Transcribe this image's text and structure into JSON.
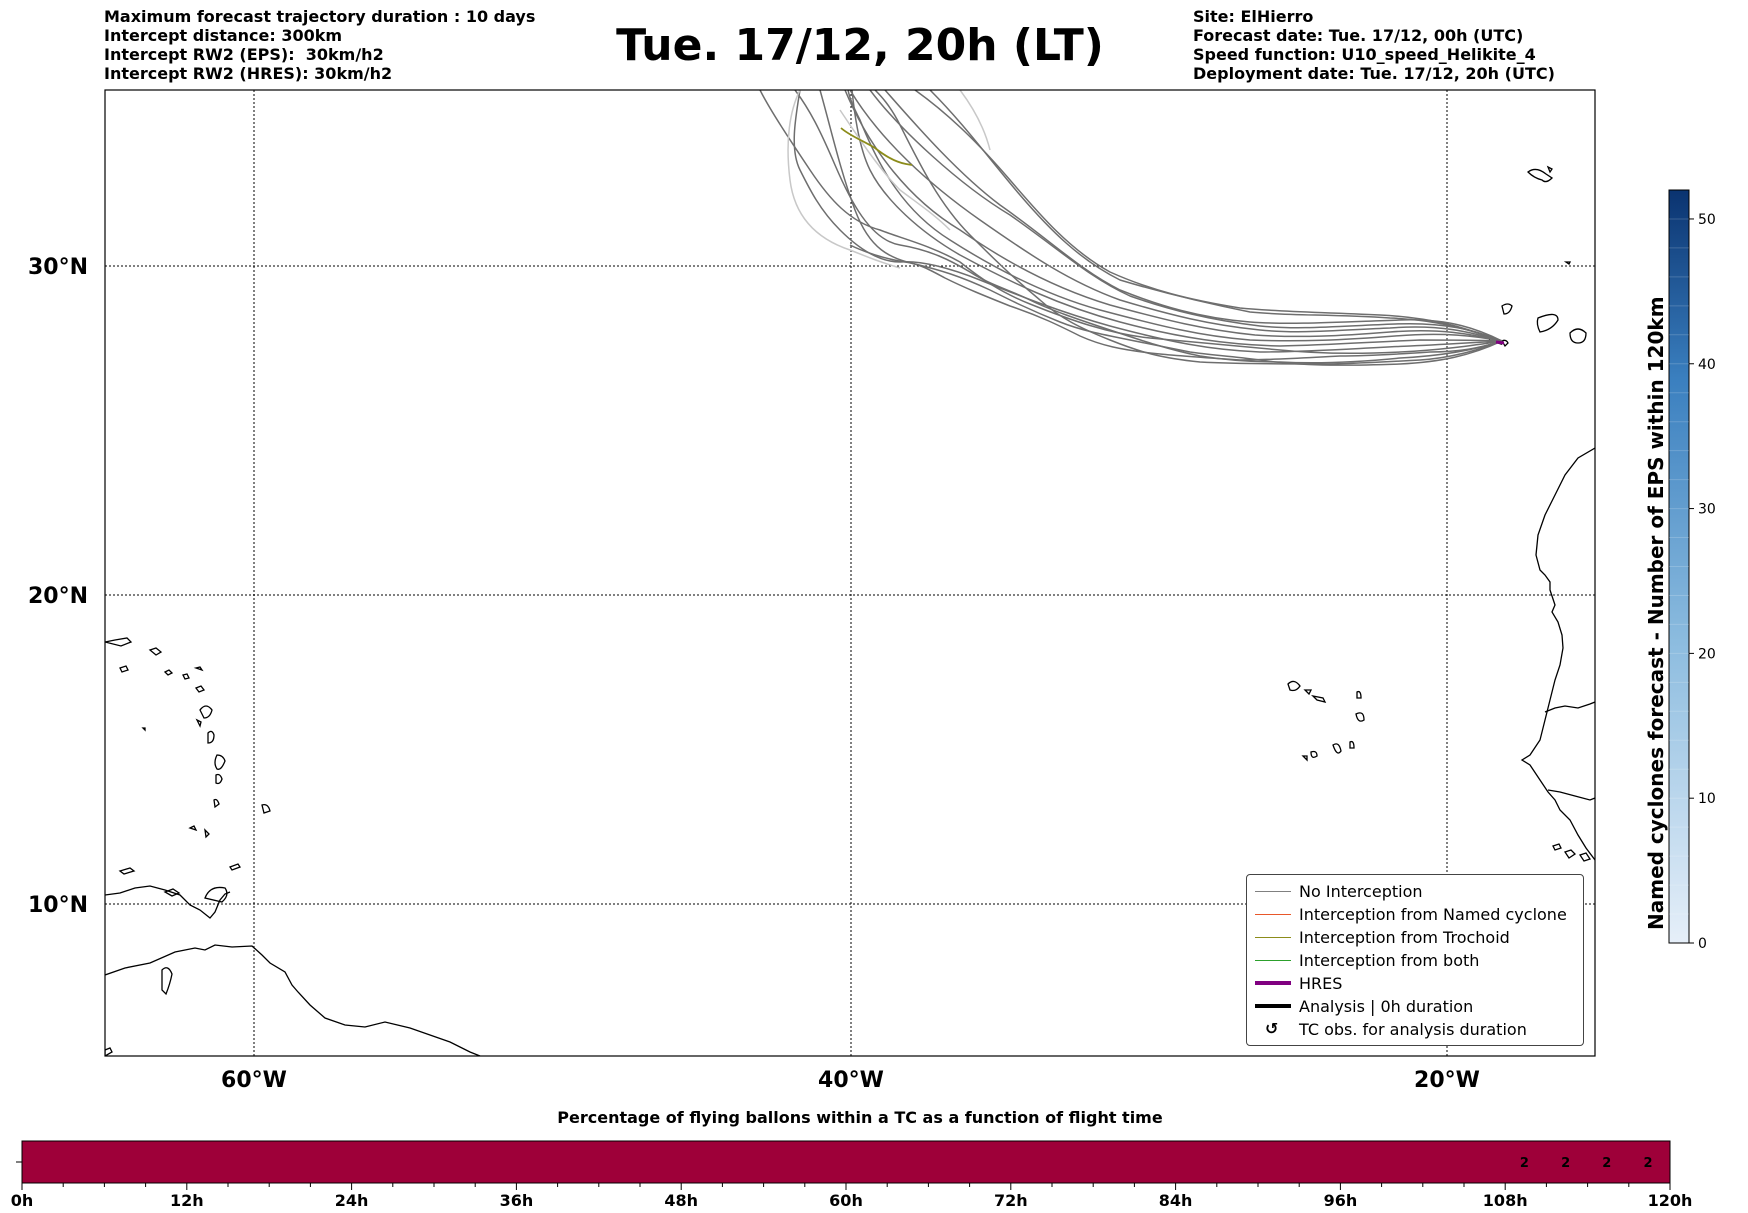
{
  "header_left": [
    "Maximum forecast trajectory duration : 10 days",
    "Intercept distance: 300km",
    "Intercept RW2 (EPS):  30km/h2",
    "Intercept RW2 (HRES): 30km/h2"
  ],
  "header_right": [
    "Site: ElHierro",
    "Forecast date: Tue. 17/12, 00h (UTC)",
    "Speed function: U10_speed_Helikite_4",
    "Deployment date: Tue. 17/12, 20h (UTC)"
  ],
  "title": "Tue. 17/12, 20h (LT)",
  "map": {
    "lon_labels": [
      "60°W",
      "40°W",
      "20°W"
    ],
    "lat_labels": [
      "30°N",
      "20°N",
      "10°N"
    ],
    "lon_range": [
      -65,
      -15
    ],
    "lat_range": [
      5.1,
      35.7
    ],
    "gridlines": true,
    "site": {
      "name": "ElHierro",
      "lon": -17.9,
      "lat": 27.7
    },
    "trajectory_colors": {
      "no_interception": "#6e6e6e",
      "trochoid": "#8c8c1a",
      "faded": "#c8c8c8",
      "hres": "#800080"
    }
  },
  "legend": {
    "items": [
      {
        "label": "No Interception",
        "color": "#808080",
        "style": "thin"
      },
      {
        "label": "Interception from Named cyclone",
        "color": "#e8572a",
        "style": "thin"
      },
      {
        "label": "Interception from Trochoid",
        "color": "#8c8c1a",
        "style": "thin"
      },
      {
        "label": "Interception from both",
        "color": "#2ca02c",
        "style": "thin"
      },
      {
        "label": "HRES",
        "color": "#800080",
        "style": "thick"
      },
      {
        "label": "Analysis | 0h duration",
        "color": "#000000",
        "style": "thick"
      },
      {
        "label": "TC obs. for analysis duration",
        "color": "#000000",
        "style": "symbol",
        "symbol": "↺"
      }
    ]
  },
  "colorbar": {
    "title": "Named cyclones forecast - Number of EPS within 120km",
    "ticks": [
      "0",
      "10",
      "20",
      "30",
      "40",
      "50"
    ],
    "min": 0,
    "max": 52,
    "color_low": "#e6eff9",
    "color_high": "#0a3370"
  },
  "bar": {
    "title": "Percentage of flying ballons within a TC as a function of flight time",
    "tick_labels": [
      "0h",
      "12h",
      "24h",
      "36h",
      "48h",
      "60h",
      "72h",
      "84h",
      "96h",
      "108h",
      "120h"
    ],
    "fill_color": "#9e0039"
  },
  "chart_data": {
    "type": "heatmap",
    "title": "Percentage of flying ballons within a TC as a function of flight time",
    "x": [
      "0h",
      "12h",
      "24h",
      "36h",
      "48h",
      "60h",
      "72h",
      "84h",
      "96h",
      "108h",
      "120h"
    ],
    "xlim": [
      0,
      120
    ],
    "annotations": [
      {
        "hour": 111,
        "value": "2"
      },
      {
        "hour": 114,
        "value": "2"
      },
      {
        "hour": 117,
        "value": "2"
      },
      {
        "hour": 120,
        "value": "2"
      }
    ]
  }
}
